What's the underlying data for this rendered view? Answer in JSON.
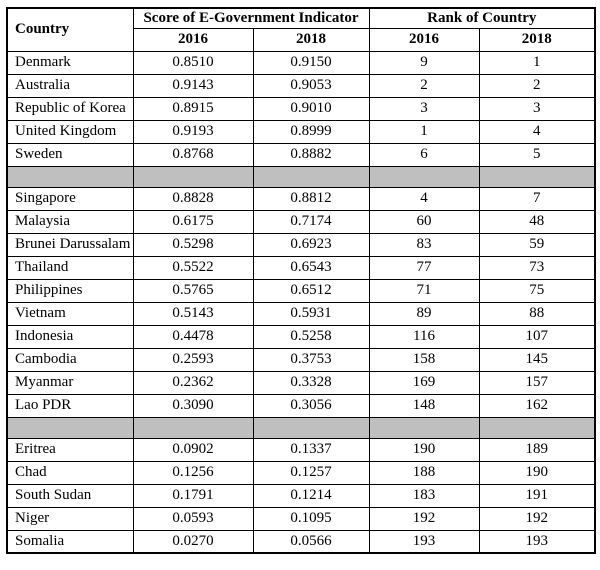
{
  "table": {
    "header": {
      "country": "Country",
      "score_group": "Score of E-Government Indicator",
      "rank_group": "Rank of Country",
      "score_years": [
        "2016",
        "2018"
      ],
      "rank_years": [
        "2016",
        "2018"
      ]
    },
    "colors": {
      "border": "#000000",
      "separator_fill": "#bfbfbf",
      "background": "#ffffff"
    },
    "sections": [
      {
        "rows": [
          {
            "country": "Denmark",
            "score_2016": "0.8510",
            "score_2018": "0.9150",
            "rank_2016": "9",
            "rank_2018": "1"
          },
          {
            "country": "Australia",
            "score_2016": "0.9143",
            "score_2018": "0.9053",
            "rank_2016": "2",
            "rank_2018": "2"
          },
          {
            "country": "Republic of Korea",
            "score_2016": "0.8915",
            "score_2018": "0.9010",
            "rank_2016": "3",
            "rank_2018": "3"
          },
          {
            "country": "United Kingdom",
            "score_2016": "0.9193",
            "score_2018": "0.8999",
            "rank_2016": "1",
            "rank_2018": "4"
          },
          {
            "country": "Sweden",
            "score_2016": "0.8768",
            "score_2018": "0.8882",
            "rank_2016": "6",
            "rank_2018": "5"
          }
        ]
      },
      {
        "rows": [
          {
            "country": "Singapore",
            "score_2016": "0.8828",
            "score_2018": "0.8812",
            "rank_2016": "4",
            "rank_2018": "7"
          },
          {
            "country": "Malaysia",
            "score_2016": "0.6175",
            "score_2018": "0.7174",
            "rank_2016": "60",
            "rank_2018": "48"
          },
          {
            "country": "Brunei Darussalam",
            "score_2016": "0.5298",
            "score_2018": "0.6923",
            "rank_2016": "83",
            "rank_2018": "59"
          },
          {
            "country": "Thailand",
            "score_2016": "0.5522",
            "score_2018": "0.6543",
            "rank_2016": "77",
            "rank_2018": "73"
          },
          {
            "country": "Philippines",
            "score_2016": "0.5765",
            "score_2018": "0.6512",
            "rank_2016": "71",
            "rank_2018": "75"
          },
          {
            "country": "Vietnam",
            "score_2016": "0.5143",
            "score_2018": "0.5931",
            "rank_2016": "89",
            "rank_2018": "88"
          },
          {
            "country": "Indonesia",
            "score_2016": "0.4478",
            "score_2018": "0.5258",
            "rank_2016": "116",
            "rank_2018": "107"
          },
          {
            "country": "Cambodia",
            "score_2016": "0.2593",
            "score_2018": "0.3753",
            "rank_2016": "158",
            "rank_2018": "145"
          },
          {
            "country": "Myanmar",
            "score_2016": "0.2362",
            "score_2018": "0.3328",
            "rank_2016": "169",
            "rank_2018": "157"
          },
          {
            "country": "Lao PDR",
            "score_2016": "0.3090",
            "score_2018": "0.3056",
            "rank_2016": "148",
            "rank_2018": "162"
          }
        ]
      },
      {
        "rows": [
          {
            "country": "Eritrea",
            "score_2016": "0.0902",
            "score_2018": "0.1337",
            "rank_2016": "190",
            "rank_2018": "189"
          },
          {
            "country": "Chad",
            "score_2016": "0.1256",
            "score_2018": "0.1257",
            "rank_2016": "188",
            "rank_2018": "190"
          },
          {
            "country": "South Sudan",
            "score_2016": "0.1791",
            "score_2018": "0.1214",
            "rank_2016": "183",
            "rank_2018": "191"
          },
          {
            "country": "Niger",
            "score_2016": "0.0593",
            "score_2018": "0.1095",
            "rank_2016": "192",
            "rank_2018": "192"
          },
          {
            "country": "Somalia",
            "score_2016": "0.0270",
            "score_2018": "0.0566",
            "rank_2016": "193",
            "rank_2018": "193"
          }
        ]
      }
    ]
  }
}
